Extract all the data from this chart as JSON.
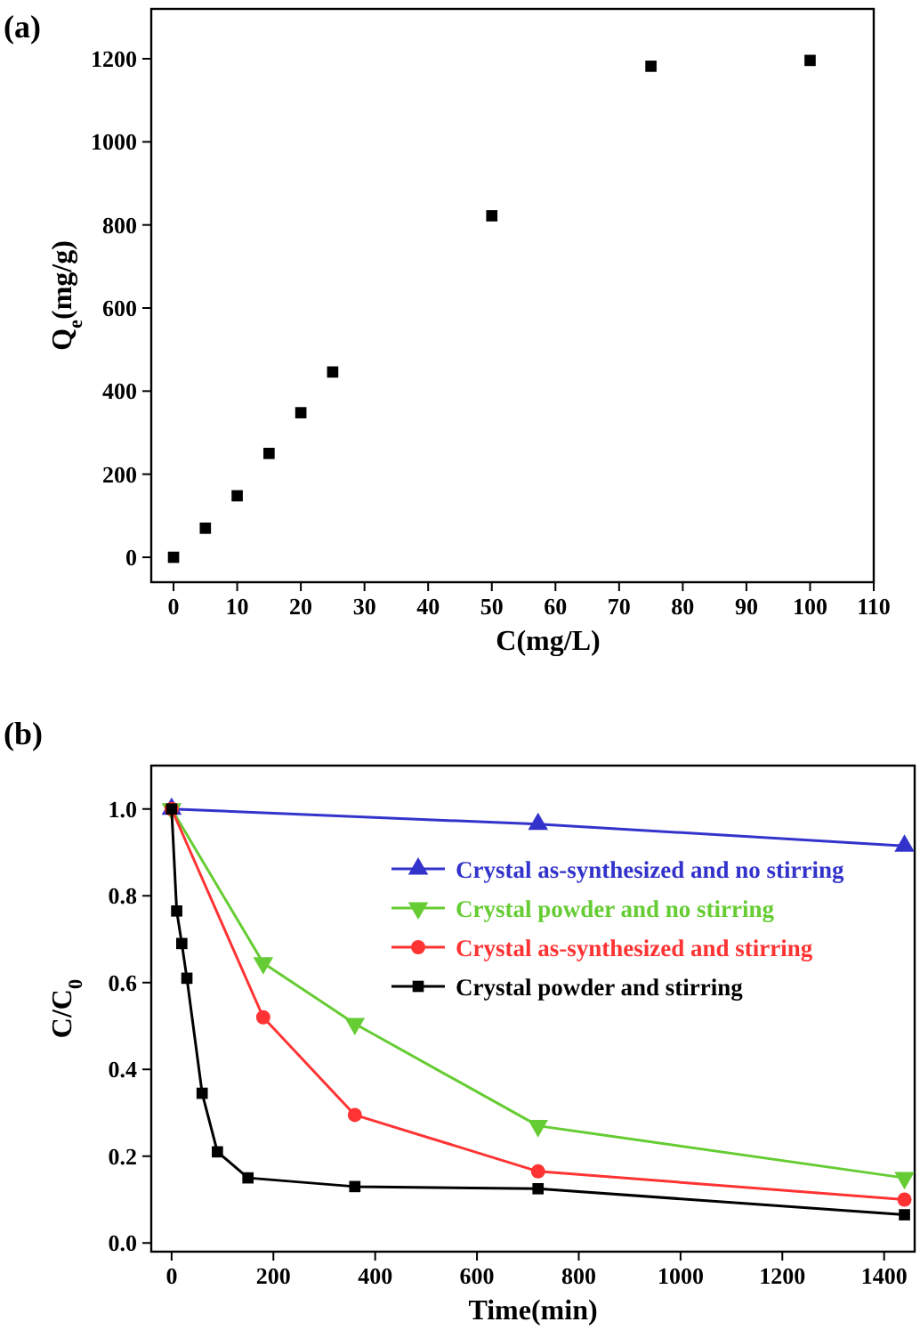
{
  "chart_data": [
    {
      "type": "scatter",
      "title": "(a)",
      "xlabel": "C(mg/L)",
      "ylabel": "Q$_{e}$(mg/g)",
      "xlim": [
        -3.5,
        110
      ],
      "ylim": [
        -60,
        1320
      ],
      "xticks": [
        0,
        10,
        20,
        30,
        40,
        50,
        60,
        70,
        80,
        90,
        100,
        110
      ],
      "yticks": [
        0,
        200,
        400,
        600,
        800,
        1000,
        1200
      ],
      "grid": false,
      "legend": false,
      "series": [
        {
          "color": "#000000",
          "marker": "square",
          "x": [
            0,
            5,
            10,
            15,
            20,
            25,
            50,
            75,
            100
          ],
          "values": [
            0,
            70,
            148,
            250,
            348,
            446,
            822,
            1182,
            1196
          ]
        }
      ]
    },
    {
      "type": "line",
      "title": "(b)",
      "xlabel": "Time(min)",
      "ylabel": "C/C$_{0}$",
      "xlim": [
        -40,
        1460
      ],
      "ylim": [
        -0.02,
        1.1
      ],
      "xticks": [
        0,
        200,
        400,
        600,
        800,
        1000,
        1200,
        1400
      ],
      "yticks": [
        {
          "value": 0,
          "label": "0.0"
        },
        0.2,
        0.4,
        0.6,
        0.8,
        {
          "value": 1,
          "label": "1.0"
        }
      ],
      "grid": false,
      "legend": "top right",
      "line_style": "solid",
      "series": [
        {
          "name": "Crystal as-synthesized and no stirring",
          "color": "#3333cc",
          "marker": "triangle",
          "x": [
            0,
            720,
            1440
          ],
          "values": [
            1.0,
            0.965,
            0.915
          ]
        },
        {
          "name": "Crystal powder and no stirring",
          "color": "#66cc33",
          "marker": "triangle-down",
          "x": [
            0,
            180,
            360,
            720,
            1440
          ],
          "values": [
            1.0,
            0.645,
            0.505,
            0.27,
            0.15
          ]
        },
        {
          "name": "Crystal as-synthesized and  stirring",
          "color": "#ff3333",
          "marker": "circle",
          "x": [
            0,
            180,
            360,
            720,
            1440
          ],
          "values": [
            1.0,
            0.52,
            0.295,
            0.165,
            0.1
          ]
        },
        {
          "name": "Crystal powder and stirring",
          "color": "#000000",
          "marker": "square",
          "x": [
            0,
            10,
            20,
            30,
            60,
            90,
            150,
            360,
            720,
            1440
          ],
          "values": [
            1.0,
            0.765,
            0.69,
            0.61,
            0.345,
            0.21,
            0.15,
            0.13,
            0.125,
            0.065
          ]
        }
      ]
    }
  ]
}
